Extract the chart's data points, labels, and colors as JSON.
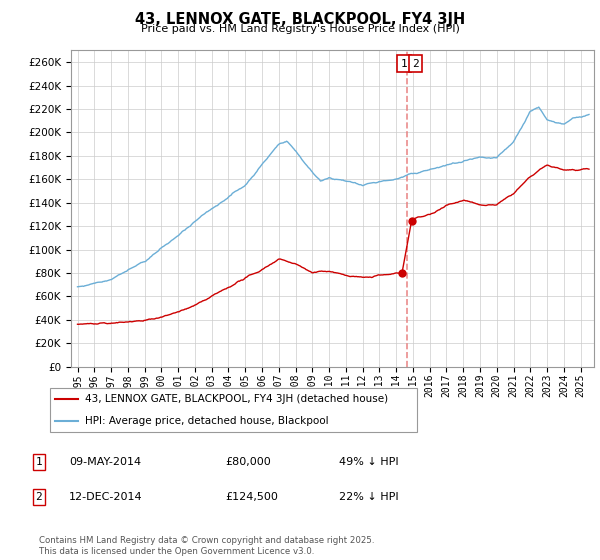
{
  "title": "43, LENNOX GATE, BLACKPOOL, FY4 3JH",
  "subtitle": "Price paid vs. HM Land Registry's House Price Index (HPI)",
  "hpi_color": "#6baed6",
  "price_color": "#cc0000",
  "dashed_line_color": "#e88080",
  "background_color": "#ffffff",
  "grid_color": "#cccccc",
  "ylim": [
    0,
    270000
  ],
  "yticks": [
    0,
    20000,
    40000,
    60000,
    80000,
    100000,
    120000,
    140000,
    160000,
    180000,
    200000,
    220000,
    240000,
    260000
  ],
  "legend_label1": "43, LENNOX GATE, BLACKPOOL, FY4 3JH (detached house)",
  "legend_label2": "HPI: Average price, detached house, Blackpool",
  "annotation1_date": "09-MAY-2014",
  "annotation1_price": "£80,000",
  "annotation1_pct": "49% ↓ HPI",
  "annotation2_date": "12-DEC-2014",
  "annotation2_price": "£124,500",
  "annotation2_pct": "22% ↓ HPI",
  "copyright_text": "Contains HM Land Registry data © Crown copyright and database right 2025.\nThis data is licensed under the Open Government Licence v3.0.",
  "sale1_year": 2014.35,
  "sale1_price": 80000,
  "sale2_year": 2014.92,
  "sale2_price": 124500,
  "vline_year": 2014.62
}
